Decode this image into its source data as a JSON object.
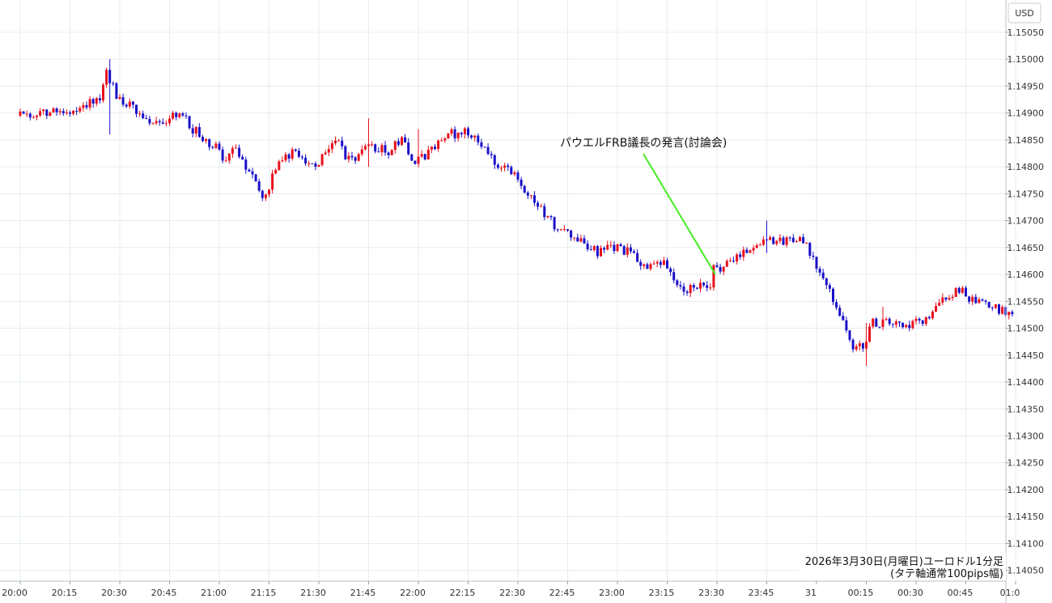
{
  "chart_data": {
    "type": "candlestick",
    "currency_label": "USD",
    "y_ticks": [
      "1.15050",
      "1.15000",
      "1.14950",
      "1.14900",
      "1.14850",
      "1.14800",
      "1.14750",
      "1.14700",
      "1.14650",
      "1.14600",
      "1.14550",
      "1.14500",
      "1.14450",
      "1.14400",
      "1.14350",
      "1.14300",
      "1.14250",
      "1.14200",
      "1.14150",
      "1.14100",
      "1.14050"
    ],
    "ylim": [
      1.1403,
      1.1511
    ],
    "x_ticks": [
      "20:00",
      "20:15",
      "20:30",
      "20:45",
      "21:00",
      "21:15",
      "21:30",
      "21:45",
      "22:00",
      "22:15",
      "22:30",
      "22:45",
      "23:00",
      "23:15",
      "23:30",
      "23:45",
      "31",
      "00:15",
      "00:30",
      "00:45",
      "01:0"
    ],
    "bar_minutes": 1,
    "start_label": "20:00",
    "annotation": {
      "text": "パウエルFRB議長の発言(討論会)",
      "target_time": "23:30",
      "target_price": 1.146
    },
    "footer_line1": "2026年3月30日(月曜日)ユーロドル1分足",
    "footer_line2": "(タテ軸通常100pips幅)",
    "colors": {
      "up": "#e8101c",
      "down": "#1a10c8",
      "annotation_line": "#44ee22",
      "grid": "#e6ecef"
    },
    "anchors": [
      [
        "20:00",
        1.14895
      ],
      [
        "20:08",
        1.149
      ],
      [
        "20:15",
        1.149
      ],
      [
        "20:18",
        1.1491
      ],
      [
        "20:25",
        1.1493
      ],
      [
        "20:27",
        1.1498
      ],
      [
        "20:30",
        1.1493
      ],
      [
        "20:35",
        1.1491
      ],
      [
        "20:40",
        1.1488
      ],
      [
        "20:45",
        1.14885
      ],
      [
        "20:49",
        1.14905
      ],
      [
        "20:53",
        1.1487
      ],
      [
        "21:00",
        1.14835
      ],
      [
        "21:03",
        1.1481
      ],
      [
        "21:06",
        1.1484
      ],
      [
        "21:10",
        1.1479
      ],
      [
        "21:15",
        1.1474
      ],
      [
        "21:18",
        1.148
      ],
      [
        "21:24",
        1.1483
      ],
      [
        "21:30",
        1.148
      ],
      [
        "21:36",
        1.1485
      ],
      [
        "21:39",
        1.1482
      ],
      [
        "21:43",
        1.14815
      ],
      [
        "21:46",
        1.1484
      ],
      [
        "21:52",
        1.1483
      ],
      [
        "21:56",
        1.1485
      ],
      [
        "22:00",
        1.1481
      ],
      [
        "22:05",
        1.1483
      ],
      [
        "22:10",
        1.1486
      ],
      [
        "22:15",
        1.14865
      ],
      [
        "22:20",
        1.1484
      ],
      [
        "22:25",
        1.14805
      ],
      [
        "22:30",
        1.1479
      ],
      [
        "22:33",
        1.1476
      ],
      [
        "22:38",
        1.1472
      ],
      [
        "22:42",
        1.1469
      ],
      [
        "22:50",
        1.1466
      ],
      [
        "22:55",
        1.1464
      ],
      [
        "23:00",
        1.1465
      ],
      [
        "23:05",
        1.1464
      ],
      [
        "23:10",
        1.1461
      ],
      [
        "23:15",
        1.1462
      ],
      [
        "23:20",
        1.1457
      ],
      [
        "23:25",
        1.1458
      ],
      [
        "23:29",
        1.1457
      ],
      [
        "23:30",
        1.1461
      ],
      [
        "23:35",
        1.1462
      ],
      [
        "23:38",
        1.1464
      ],
      [
        "23:42",
        1.1465
      ],
      [
        "23:46",
        1.1467
      ],
      [
        "23:50",
        1.1466
      ],
      [
        "23:55",
        1.1467
      ],
      [
        "23:58",
        1.1465
      ],
      [
        "00:03",
        1.1459
      ],
      [
        "00:08",
        1.1453
      ],
      [
        "00:12",
        1.1446
      ],
      [
        "00:15",
        1.1447
      ],
      [
        "00:18",
        1.1451
      ],
      [
        "00:24",
        1.1451
      ],
      [
        "00:28",
        1.145
      ],
      [
        "00:35",
        1.1452
      ],
      [
        "00:40",
        1.1456
      ],
      [
        "00:45",
        1.1457
      ],
      [
        "00:48",
        1.1455
      ],
      [
        "00:53",
        1.1454
      ],
      [
        "00:59",
        1.1453
      ]
    ],
    "spikes": [
      [
        "20:27",
        1.15,
        1.1486
      ],
      [
        "21:45",
        1.1489,
        1.148
      ],
      [
        "22:00",
        1.1487,
        1.1483
      ],
      [
        "23:45",
        1.147,
        1.1464
      ],
      [
        "00:15",
        1.1451,
        1.1443
      ],
      [
        "00:20",
        1.1454,
        1.145
      ]
    ]
  }
}
